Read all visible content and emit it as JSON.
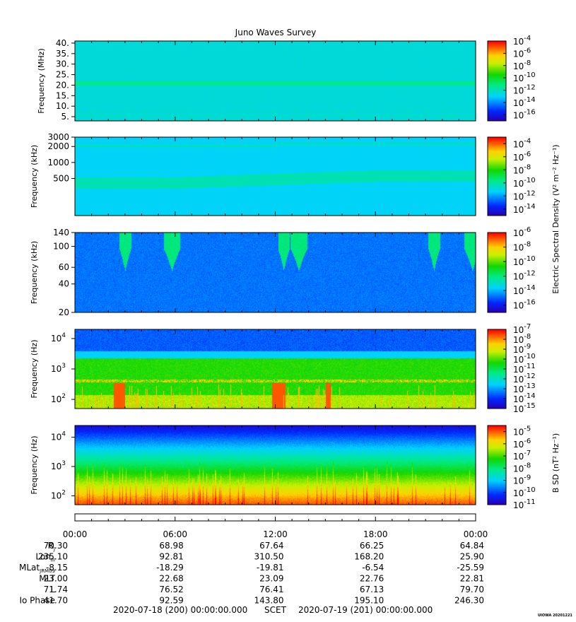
{
  "title": "Juno Waves Survey",
  "chart_data": [
    {
      "type": "heatmap",
      "panel": 1,
      "ylabel": "Frequency (MHz)",
      "yticks": [
        {
          "label": "5.",
          "value": 5
        },
        {
          "label": "10.",
          "value": 10
        },
        {
          "label": "15.",
          "value": 15
        },
        {
          "label": "20.",
          "value": 20
        },
        {
          "label": "25.",
          "value": 25
        },
        {
          "label": "30.",
          "value": 30
        },
        {
          "label": "35.",
          "value": 35
        },
        {
          "label": "40.",
          "value": 40
        }
      ],
      "ylim": [
        3,
        41
      ],
      "yscale": "linear",
      "colorbar": {
        "exponents": [
          "-4",
          "-6",
          "-8",
          "-10",
          "-12",
          "-14",
          "-16"
        ],
        "range_log10": [
          -17,
          -4
        ]
      },
      "background_log10": -12.5,
      "bands": [
        {
          "y": 21,
          "halfwidth": 1.0,
          "log10": -11.3
        }
      ]
    },
    {
      "type": "heatmap",
      "panel": 2,
      "ylabel": "Frequency (kHz)",
      "yticks": [
        {
          "label": "500",
          "value": 500
        },
        {
          "label": "1000",
          "value": 1000
        },
        {
          "label": "2000",
          "value": 2000
        },
        {
          "label": "3000",
          "value": 3000
        }
      ],
      "ylim": [
        100,
        3000
      ],
      "yscale": "log",
      "colorbar": {
        "exponents": [
          "-4",
          "-6",
          "-8",
          "-10",
          "-12",
          "-14"
        ],
        "range_log10": [
          -15,
          -3
        ]
      },
      "background_log10": -11.3,
      "bands": [
        {
          "y_start": 2000,
          "y_end": 2250,
          "log10": -10.6
        },
        {
          "y_start": 340,
          "y_end": 560,
          "log10": -10.3
        }
      ]
    },
    {
      "type": "heatmap",
      "panel": 3,
      "ylabel": "Frequency (kHz)",
      "yticks": [
        {
          "label": "20",
          "value": 20
        },
        {
          "label": "40",
          "value": 40
        },
        {
          "label": "60",
          "value": 60
        },
        {
          "label": "100",
          "value": 100
        },
        {
          "label": "140",
          "value": 140
        }
      ],
      "ylim": [
        20,
        140
      ],
      "yscale": "log",
      "colorbar": {
        "exponents": [
          "-6",
          "-8",
          "-10",
          "-12",
          "-14",
          "-16"
        ],
        "range_log10": [
          -17,
          -6
        ]
      },
      "background_log10": -14.8,
      "bursts_hours": [
        3.0,
        5.8,
        12.5,
        13.4,
        21.5,
        23.8
      ]
    },
    {
      "type": "heatmap",
      "panel": 4,
      "ylabel": "Frequency (Hz)",
      "yticks": [
        {
          "base": "10",
          "exp": "2",
          "value": 100
        },
        {
          "base": "10",
          "exp": "3",
          "value": 1000
        },
        {
          "base": "10",
          "exp": "4",
          "value": 10000
        }
      ],
      "ylim": [
        50,
        20000
      ],
      "yscale": "log",
      "colorbar": {
        "exponents": [
          "-7",
          "-8",
          "-9",
          "-10",
          "-11",
          "-12",
          "-13",
          "-14",
          "-15"
        ],
        "range_log10": [
          -15,
          -7
        ]
      },
      "hot_intervals_hours": [
        [
          2.3,
          3.0
        ],
        [
          11.8,
          12.6
        ],
        [
          15.0,
          15.3
        ]
      ]
    },
    {
      "type": "heatmap",
      "panel": 5,
      "ylabel": "Frequency (Hz)",
      "yticks": [
        {
          "base": "10",
          "exp": "2",
          "value": 100
        },
        {
          "base": "10",
          "exp": "3",
          "value": 1000
        },
        {
          "base": "10",
          "exp": "4",
          "value": 10000
        }
      ],
      "ylim": [
        50,
        25000
      ],
      "yscale": "log",
      "colorbar": {
        "exponents": [
          "-5",
          "-6",
          "-7",
          "-8",
          "-9",
          "-10",
          "-11"
        ],
        "range_log10": [
          -11,
          -4.5
        ]
      }
    }
  ],
  "colorbar_base": "10",
  "colorbar_label_e": "Electric Spectral Density (V² m⁻² Hz⁻¹)",
  "colorbar_label_b": "B SD (nT² Hz⁻¹)",
  "xaxis": {
    "time_labels": [
      "00:00",
      "06:00",
      "12:00",
      "18:00",
      "00:00"
    ],
    "time_hours": [
      0,
      6,
      12,
      18,
      24
    ]
  },
  "ephemeris": [
    {
      "label": "R",
      "sub": "J",
      "values": [
        "70.30",
        "68.98",
        "67.64",
        "66.25",
        "64.84"
      ]
    },
    {
      "label": "Lon",
      "sub": "III",
      "values": [
        "235.10",
        "92.81",
        "310.50",
        "168.20",
        "25.90"
      ]
    },
    {
      "label": "MLat",
      "sub": "JRM09",
      "values": [
        "-8.15",
        "-18.29",
        "-19.81",
        "-6.54",
        "-25.59"
      ]
    },
    {
      "label": "MLT",
      "sub": "",
      "values": [
        "23.00",
        "22.68",
        "23.09",
        "22.76",
        "22.81"
      ]
    },
    {
      "label": "L",
      "sub": "",
      "values": [
        "71.74",
        "76.52",
        "76.41",
        "67.13",
        "79.70"
      ]
    },
    {
      "label": "Io Phase",
      "sub": "",
      "values": [
        "41.70",
        "92.59",
        "143.80",
        "195.10",
        "246.30"
      ]
    }
  ],
  "footer": {
    "start": "2020-07-18 (200) 00:00:00.000",
    "scet": "SCET",
    "end": "2020-07-19 (201) 00:00:00.000"
  },
  "stamp": "UIOWA 20201221"
}
